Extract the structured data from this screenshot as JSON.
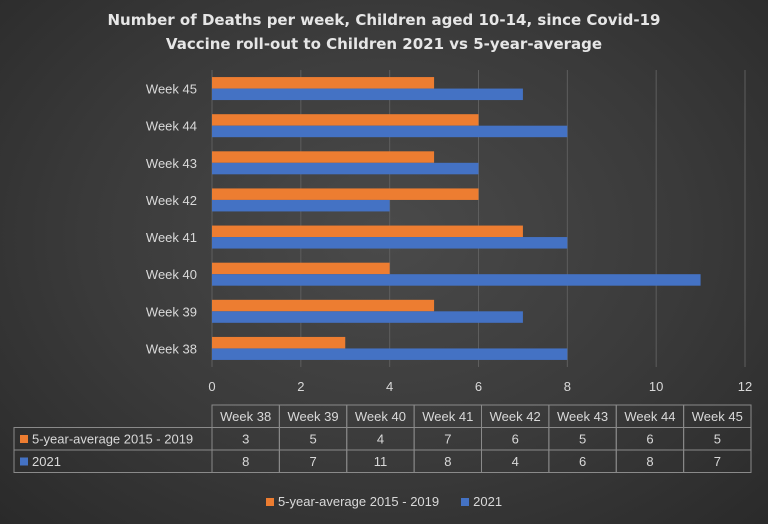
{
  "chart_data": {
    "type": "bar",
    "orientation": "horizontal",
    "title_line1": "Number of Deaths per week, Children aged 10-14, since Covid-19",
    "title_line2": "Vaccine  roll-out to Children  2021 vs 5-year-average",
    "categories": [
      "Week 38",
      "Week 39",
      "Week 40",
      "Week 41",
      "Week 42",
      "Week 43",
      "Week 44",
      "Week 45"
    ],
    "series": [
      {
        "name": "5-year-average 2015 - 2019",
        "color": "#ed7d31",
        "values": [
          3,
          5,
          4,
          7,
          6,
          5,
          6,
          5
        ]
      },
      {
        "name": "2021",
        "color": "#4472c4",
        "values": [
          8,
          7,
          11,
          8,
          4,
          6,
          8,
          7
        ]
      }
    ],
    "xlim": [
      0,
      12
    ],
    "xticks": [
      0,
      2,
      4,
      6,
      8,
      10,
      12
    ],
    "grid": true,
    "legend_position": "bottom",
    "data_table": true
  }
}
